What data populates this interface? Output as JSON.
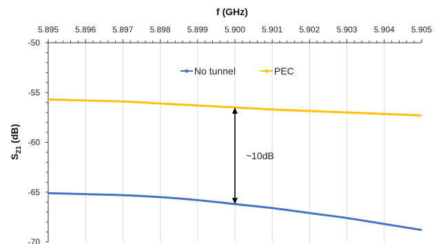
{
  "chart_data": {
    "type": "line",
    "xlabel": "f (GHz)",
    "xaxis_position": "top",
    "ylabel_main": "S",
    "ylabel_sub": "21",
    "ylabel_unit": " (dB)",
    "xlim": [
      5.895,
      5.905
    ],
    "ylim": [
      -70,
      -50
    ],
    "xticks": [
      "5.895",
      "5.896",
      "5.897",
      "5.898",
      "5.899",
      "5.900",
      "5.901",
      "5.902",
      "5.903",
      "5.904",
      "5.905"
    ],
    "yticks": [
      "-50",
      "-55",
      "-60",
      "-65",
      "-70"
    ],
    "grid": "vertical",
    "legend_position": "top-center",
    "series": [
      {
        "name": "No tunnel",
        "color": "#4472C4",
        "x": [
          5.895,
          5.896,
          5.897,
          5.898,
          5.899,
          5.9,
          5.901,
          5.902,
          5.903,
          5.904,
          5.905
        ],
        "y": [
          -65.1,
          -65.2,
          -65.3,
          -65.5,
          -65.8,
          -66.2,
          -66.6,
          -67.1,
          -67.6,
          -68.2,
          -68.8
        ]
      },
      {
        "name": "PEC",
        "color": "#FFC000",
        "x": [
          5.895,
          5.896,
          5.897,
          5.898,
          5.899,
          5.9,
          5.901,
          5.902,
          5.903,
          5.904,
          5.905
        ],
        "y": [
          -55.7,
          -55.8,
          -55.9,
          -56.1,
          -56.3,
          -56.5,
          -56.7,
          -56.85,
          -57.0,
          -57.15,
          -57.3
        ]
      }
    ],
    "annotation": {
      "text": "~10dB",
      "x": 5.9,
      "y_top": -56.5,
      "y_bottom": -66.2
    }
  }
}
